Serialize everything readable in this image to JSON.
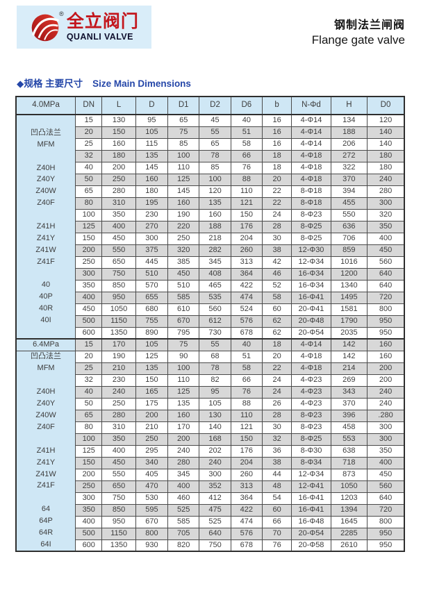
{
  "brand": {
    "registered": "®",
    "name_cn": "全立阀门",
    "name_en": "QUANLI VALVE"
  },
  "title": {
    "cn": "钢制法兰闸阀",
    "en": "Flange gate valve"
  },
  "section_heading": {
    "bullet": "◆",
    "cn": "规格 主要尺寸",
    "en": "Size Main Dimensions"
  },
  "colors": {
    "panel_blue": "#cfe7f5",
    "logo_blue": "#d9edf9",
    "stripe_gray": "#d8d8d8",
    "heading_blue": "#2446a8",
    "brand_red": "#c3161d",
    "border_dark": "#4a4a4a"
  },
  "table": {
    "columns": [
      "DN",
      "L",
      "D",
      "D1",
      "D2",
      "D6",
      "b",
      "N-Φd",
      "H",
      "D0"
    ],
    "sections": [
      {
        "pressure": "4.0MPa",
        "rows": [
          {
            "group": "",
            "cells": [
              "15",
              "130",
              "95",
              "65",
              "45",
              "40",
              "16",
              "4-Φ14",
              "134",
              "120"
            ]
          },
          {
            "group": "凹凸法兰",
            "cells": [
              "20",
              "150",
              "105",
              "75",
              "55",
              "51",
              "16",
              "4-Φ14",
              "188",
              "140"
            ]
          },
          {
            "group": "MFM",
            "cells": [
              "25",
              "160",
              "115",
              "85",
              "65",
              "58",
              "16",
              "4-Φ14",
              "206",
              "140"
            ]
          },
          {
            "group": "",
            "cells": [
              "32",
              "180",
              "135",
              "100",
              "78",
              "66",
              "18",
              "4-Φ18",
              "272",
              "180"
            ]
          },
          {
            "group": "Z40H",
            "cells": [
              "40",
              "200",
              "145",
              "110",
              "85",
              "76",
              "18",
              "4-Φ18",
              "322",
              "180"
            ]
          },
          {
            "group": "Z40Y",
            "cells": [
              "50",
              "250",
              "160",
              "125",
              "100",
              "88",
              "20",
              "4-Φ18",
              "370",
              "240"
            ]
          },
          {
            "group": "Z40W",
            "cells": [
              "65",
              "280",
              "180",
              "145",
              "120",
              "110",
              "22",
              "8-Φ18",
              "394",
              "280"
            ]
          },
          {
            "group": "Z40F",
            "cells": [
              "80",
              "310",
              "195",
              "160",
              "135",
              "121",
              "22",
              "8-Φ18",
              "455",
              "300"
            ]
          },
          {
            "group": "",
            "cells": [
              "100",
              "350",
              "230",
              "190",
              "160",
              "150",
              "24",
              "8-Φ23",
              "550",
              "320"
            ]
          },
          {
            "group": "Z41H",
            "cells": [
              "125",
              "400",
              "270",
              "220",
              "188",
              "176",
              "28",
              "8-Φ25",
              "636",
              "350"
            ]
          },
          {
            "group": "Z41Y",
            "cells": [
              "150",
              "450",
              "300",
              "250",
              "218",
              "204",
              "30",
              "8-Φ25",
              "706",
              "400"
            ]
          },
          {
            "group": "Z41W",
            "cells": [
              "200",
              "550",
              "375",
              "320",
              "282",
              "260",
              "38",
              "12-Φ30",
              "859",
              "450"
            ]
          },
          {
            "group": "Z41F",
            "cells": [
              "250",
              "650",
              "445",
              "385",
              "345",
              "313",
              "42",
              "12-Φ34",
              "1016",
              "560"
            ]
          },
          {
            "group": "",
            "cells": [
              "300",
              "750",
              "510",
              "450",
              "408",
              "364",
              "46",
              "16-Φ34",
              "1200",
              "640"
            ]
          },
          {
            "group": "40",
            "cells": [
              "350",
              "850",
              "570",
              "510",
              "465",
              "422",
              "52",
              "16-Φ34",
              "1340",
              "640"
            ]
          },
          {
            "group": "40P",
            "cells": [
              "400",
              "950",
              "655",
              "585",
              "535",
              "474",
              "58",
              "16-Φ41",
              "1495",
              "720"
            ]
          },
          {
            "group": "40R",
            "cells": [
              "450",
              "1050",
              "680",
              "610",
              "560",
              "524",
              "60",
              "20-Φ41",
              "1581",
              "800"
            ]
          },
          {
            "group": "40I",
            "cells": [
              "500",
              "1150",
              "755",
              "670",
              "612",
              "576",
              "62",
              "20-Φ48",
              "1790",
              "950"
            ]
          },
          {
            "group": "",
            "cells": [
              "600",
              "1350",
              "890",
              "795",
              "730",
              "678",
              "62",
              "20-Φ54",
              "2035",
              "950"
            ]
          }
        ]
      },
      {
        "pressure": "6.4MPa",
        "rows": [
          {
            "group": "6.4MPa",
            "cells": [
              "15",
              "170",
              "105",
              "75",
              "55",
              "40",
              "18",
              "4-Φ14",
              "142",
              "160"
            ]
          },
          {
            "group": "凹凸法兰",
            "cells": [
              "20",
              "190",
              "125",
              "90",
              "68",
              "51",
              "20",
              "4-Φ18",
              "142",
              "160"
            ]
          },
          {
            "group": "MFM",
            "cells": [
              "25",
              "210",
              "135",
              "100",
              "78",
              "58",
              "22",
              "4-Φ18",
              "214",
              "200"
            ]
          },
          {
            "group": "",
            "cells": [
              "32",
              "230",
              "150",
              "110",
              "82",
              "66",
              "24",
              "4-Φ23",
              "269",
              "200"
            ]
          },
          {
            "group": "Z40H",
            "cells": [
              "40",
              "240",
              "165",
              "125",
              "95",
              "76",
              "24",
              "4-Φ23",
              "343",
              "240"
            ]
          },
          {
            "group": "Z40Y",
            "cells": [
              "50",
              "250",
              "175",
              "135",
              "105",
              "88",
              "26",
              "4-Φ23",
              "370",
              "240"
            ]
          },
          {
            "group": "Z40W",
            "cells": [
              "65",
              "280",
              "200",
              "160",
              "130",
              "110",
              "28",
              "8-Φ23",
              "396",
              ".280"
            ]
          },
          {
            "group": "Z40F",
            "cells": [
              "80",
              "310",
              "210",
              "170",
              "140",
              "121",
              "30",
              "8-Φ23",
              "458",
              "300"
            ]
          },
          {
            "group": "",
            "cells": [
              "100",
              "350",
              "250",
              "200",
              "168",
              "150",
              "32",
              "8-Φ25",
              "553",
              "300"
            ]
          },
          {
            "group": "Z41H",
            "cells": [
              "125",
              "400",
              "295",
              "240",
              "202",
              "176",
              "36",
              "8-Φ30",
              "638",
              "350"
            ]
          },
          {
            "group": "Z41Y",
            "cells": [
              "150",
              "450",
              "340",
              "280",
              "240",
              "204",
              "38",
              "8-Φ34",
              "718",
              "400"
            ]
          },
          {
            "group": "Z41W",
            "cells": [
              "200",
              "550",
              "405",
              "345",
              "300",
              "260",
              "44",
              "12-Φ34",
              "873",
              "450"
            ]
          },
          {
            "group": "Z41F",
            "cells": [
              "250",
              "650",
              "470",
              "400",
              "352",
              "313",
              "48",
              "12-Φ41",
              "1050",
              "560"
            ]
          },
          {
            "group": "",
            "cells": [
              "300",
              "750",
              "530",
              "460",
              "412",
              "364",
              "54",
              "16-Φ41",
              "1203",
              "640"
            ]
          },
          {
            "group": "64",
            "cells": [
              "350",
              "850",
              "595",
              "525",
              "475",
              "422",
              "60",
              "16-Φ41",
              "1394",
              "720"
            ]
          },
          {
            "group": "64P",
            "cells": [
              "400",
              "950",
              "670",
              "585",
              "525",
              "474",
              "66",
              "16-Φ48",
              "1645",
              "800"
            ]
          },
          {
            "group": "64R",
            "cells": [
              "500",
              "1150",
              "800",
              "705",
              "640",
              "576",
              "70",
              "20-Φ54",
              "2285",
              "950"
            ]
          },
          {
            "group": "64I",
            "cells": [
              "600",
              "1350",
              "930",
              "820",
              "750",
              "678",
              "76",
              "20-Φ58",
              "2610",
              "950"
            ]
          }
        ]
      }
    ]
  }
}
